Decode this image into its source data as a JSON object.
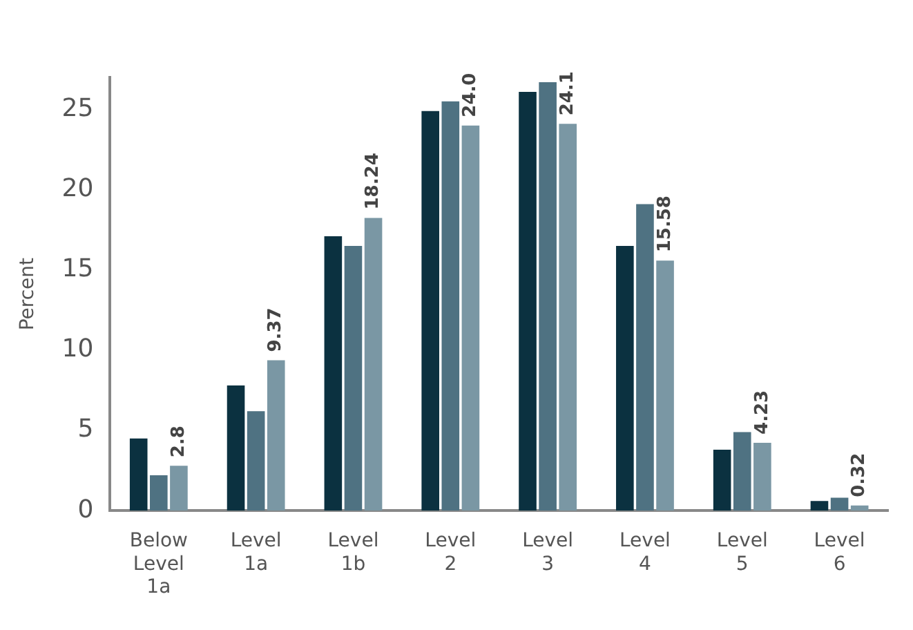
{
  "chart_data": {
    "type": "bar",
    "ylabel": "Percent",
    "categories": [
      "Below Level 1a",
      "Level 1a",
      "Level 1b",
      "Level 2",
      "Level 3",
      "Level 4",
      "Level 5",
      "Level 6"
    ],
    "series": [
      {
        "color": "#0b3140",
        "values": [
          4.5,
          7.8,
          17.1,
          24.9,
          26.1,
          16.5,
          3.8,
          0.6
        ]
      },
      {
        "color": "#4f7282",
        "values": [
          2.2,
          6.2,
          16.5,
          25.5,
          26.7,
          19.1,
          4.9,
          0.8
        ]
      },
      {
        "color": "#7a97a4",
        "values": [
          2.8,
          9.37,
          18.24,
          24.0,
          24.1,
          15.58,
          4.23,
          0.32
        ],
        "value_labels": [
          "2.8",
          "9.37",
          "18.24",
          "24.0",
          "24.1",
          "15.58",
          "4.23",
          "0.32"
        ]
      }
    ],
    "ylim": [
      0,
      27
    ],
    "yticks": [
      0,
      5,
      10,
      15,
      20,
      25
    ],
    "grid": false,
    "legend": false
  }
}
